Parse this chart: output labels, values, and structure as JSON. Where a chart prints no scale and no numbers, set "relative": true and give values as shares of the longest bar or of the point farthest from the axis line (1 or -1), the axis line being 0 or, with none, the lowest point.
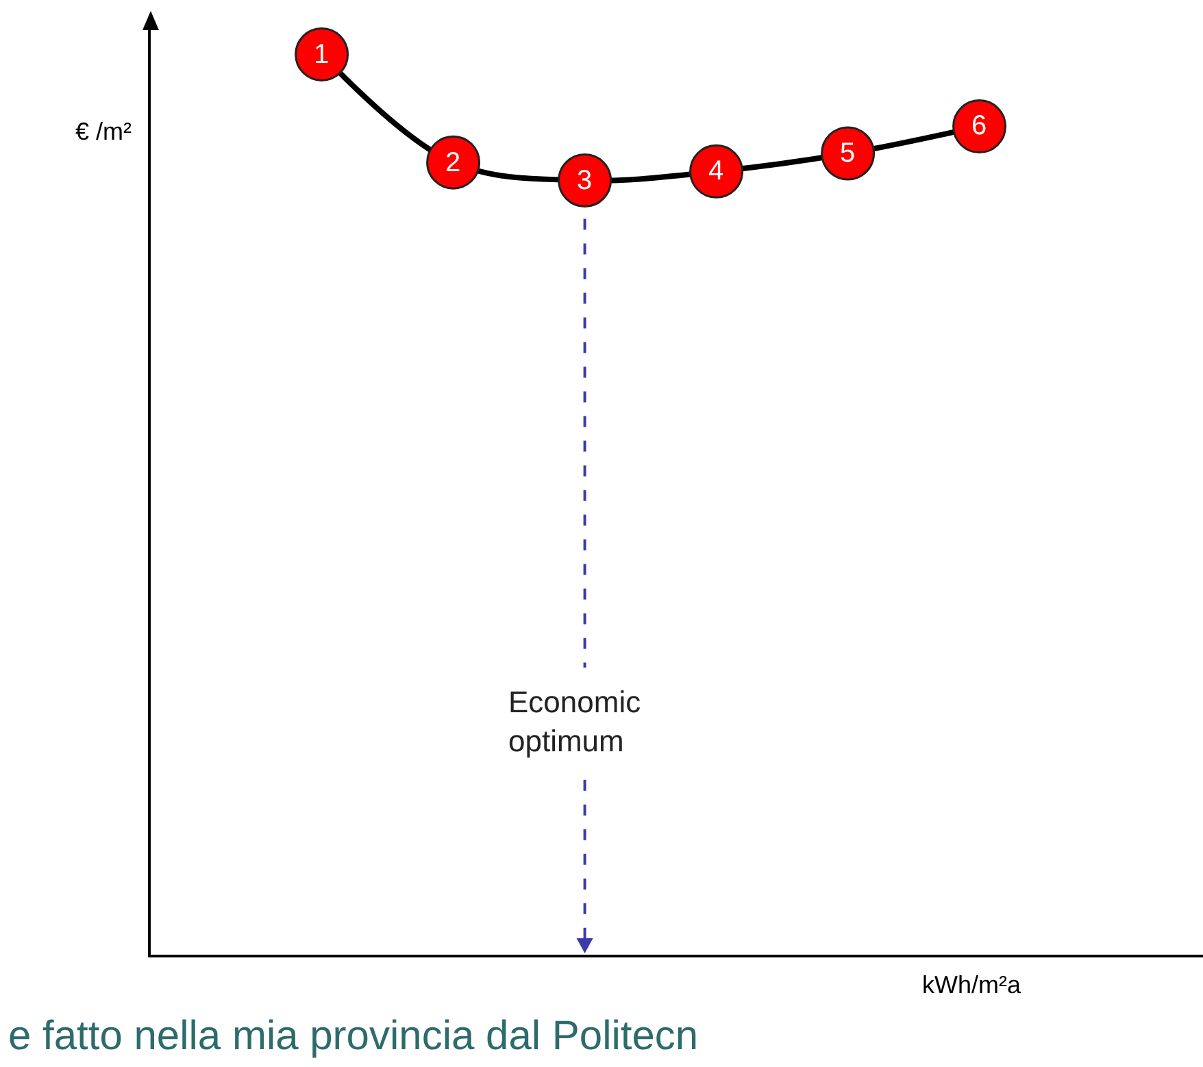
{
  "chart_data": {
    "type": "line",
    "relative": true,
    "xlabel": "kWh/m²a",
    "marker": "circle",
    "line_style": "solid",
    "categories": [
      null,
      null,
      null,
      null,
      null,
      null
    ],
    "series": [
      {
        "color": "#000000",
        "values": [
          1,
          0.88,
          0.86,
          0.87,
          0.89,
          0.92
        ]
      }
    ],
    "annotations": [
      {
        "text": "1",
        "y": 1
      },
      {
        "text": "2",
        "y": 0.88
      },
      {
        "text": "3",
        "y": 0.86
      },
      {
        "text": "4",
        "y": 0.87
      },
      {
        "text": "5",
        "y": 0.89
      },
      {
        "text": "6",
        "y": 0.92
      },
      "€ /m²",
      "Economic optimum",
      "e fatto nella mia provincia dal Politecn"
    ]
  }
}
